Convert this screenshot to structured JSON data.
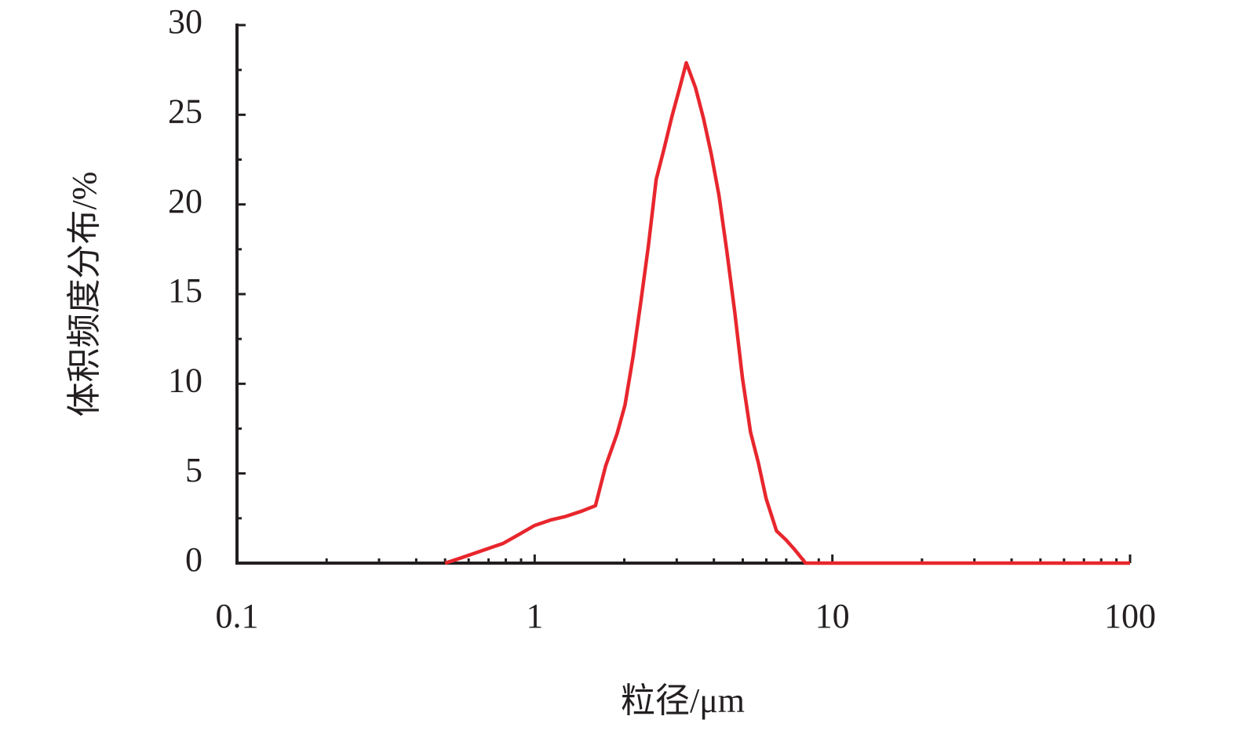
{
  "chart_data": {
    "type": "line",
    "x_label": "粒径/μm",
    "y_label": "体积频度分布/%",
    "x_scale": "log",
    "xlim": [
      0.1,
      100
    ],
    "xticks": [
      0.1,
      1,
      10,
      100
    ],
    "xminorticks": [
      0.2,
      0.3,
      0.4,
      0.5,
      0.6,
      0.7,
      0.8,
      0.9,
      2,
      3,
      4,
      5,
      6,
      7,
      8,
      9,
      20,
      30,
      40,
      50,
      60,
      70,
      80,
      90
    ],
    "ylim": [
      0,
      30
    ],
    "yticks": [
      0,
      5,
      10,
      15,
      20,
      25,
      30
    ],
    "yminorticks": [
      2.5,
      7.5,
      12.5,
      17.5,
      22.5,
      27.5
    ],
    "grid": false,
    "series": [
      {
        "color": "#e8262d",
        "x": [
          0.5,
          0.545,
          0.615,
          0.694,
          0.784,
          0.886,
          1.0,
          1.13,
          1.27,
          1.44,
          1.6,
          1.73,
          1.89,
          2.01,
          2.14,
          2.27,
          2.41,
          2.56,
          2.72,
          2.89,
          3.07,
          3.23,
          3.47,
          3.69,
          3.92,
          4.16,
          4.42,
          4.7,
          4.99,
          5.31,
          5.64,
          5.99,
          6.49,
          6.98,
          7.43,
          8.13,
          100
        ],
        "values": [
          0,
          0.2,
          0.5,
          0.8,
          1.1,
          1.6,
          2.1,
          2.4,
          2.6,
          2.9,
          3.2,
          5.4,
          7.2,
          8.8,
          11.5,
          14.5,
          17.7,
          21.4,
          23.1,
          24.9,
          26.5,
          27.9,
          26.5,
          24.8,
          22.8,
          20.5,
          17.4,
          14.0,
          10.3,
          7.3,
          5.6,
          3.6,
          1.8,
          1.3,
          0.8,
          0,
          0
        ]
      }
    ]
  }
}
